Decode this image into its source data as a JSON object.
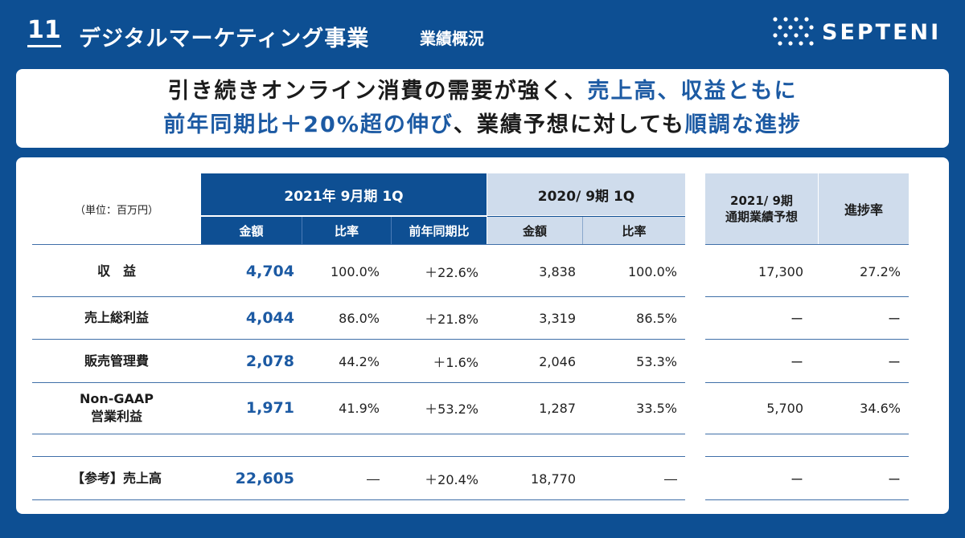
{
  "header": {
    "page_number": "11",
    "title": "デジタルマーケティング事業",
    "subtitle": "業績概況",
    "logo_text": "SEPTENI"
  },
  "headline": {
    "line1_dark": "引き続きオンライン消費の需要が強く、",
    "line1_blue": "売上高、収益ともに",
    "line2_blue_a": "前年同期比＋20%超の伸び",
    "line2_dark_a": "、業績予想に対しても",
    "line2_blue_b": "順調な進捗"
  },
  "table": {
    "unit_label": "（単位：百万円）",
    "group_2021": "2021年 9月期 1Q",
    "group_2020": "2020/ 9期 1Q",
    "group_forecast": "2021/ 9期\n通期業績予想",
    "group_progress": "進捗率",
    "sub_amount_2021": "金額",
    "sub_ratio_2021": "比率",
    "sub_yoy_2021": "前年同期比",
    "sub_amount_2020": "金額",
    "sub_ratio_2020": "比率",
    "rows": [
      {
        "label": "収　益",
        "amount": "4,704",
        "ratio": "100.0%",
        "yoy": "＋22.6%",
        "amount_prev": "3,838",
        "ratio_prev": "100.0%",
        "forecast": "17,300",
        "progress": "27.2%"
      },
      {
        "label": "売上総利益",
        "amount": "4,044",
        "ratio": "86.0%",
        "yoy": "＋21.8%",
        "amount_prev": "3,319",
        "ratio_prev": "86.5%",
        "forecast": "ー",
        "progress": "ー"
      },
      {
        "label": "販売管理費",
        "amount": "2,078",
        "ratio": "44.2%",
        "yoy": "＋1.6%",
        "amount_prev": "2,046",
        "ratio_prev": "53.3%",
        "forecast": "ー",
        "progress": "ー"
      },
      {
        "label": "Non-GAAP\n営業利益",
        "amount": "1,971",
        "ratio": "41.9%",
        "yoy": "＋53.2%",
        "amount_prev": "1,287",
        "ratio_prev": "33.5%",
        "forecast": "5,700",
        "progress": "34.6%"
      },
      {
        "label": "【参考】売上高",
        "amount": "22,605",
        "ratio": "―",
        "yoy": "＋20.4%",
        "amount_prev": "18,770",
        "ratio_prev": "―",
        "forecast": "ー",
        "progress": "ー"
      }
    ]
  },
  "colors": {
    "background": "#0d4f93",
    "accent_blue": "#1c5aa3",
    "header_light": "#cfdcec"
  }
}
